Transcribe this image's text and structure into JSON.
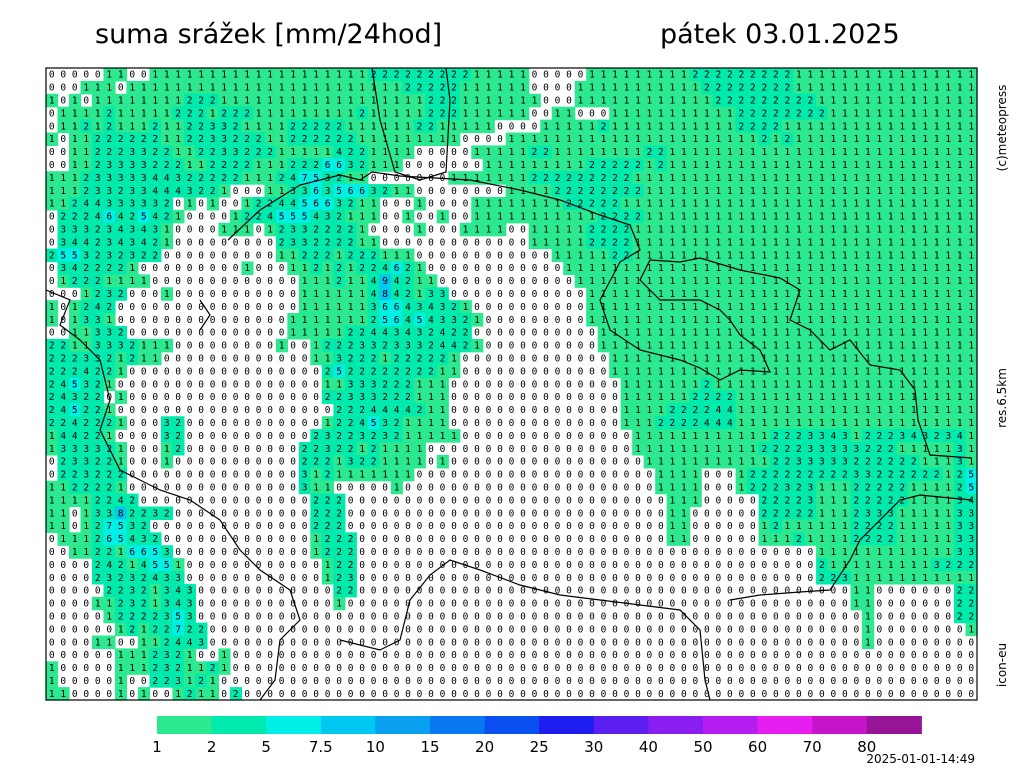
{
  "header": {
    "title": "suma srážek [mm/24hod]",
    "date": "pátek 03.01.2025"
  },
  "side_labels": {
    "copyright": "(c)meteopress",
    "resolution": "res.6.5km",
    "model": "icon-eu"
  },
  "timestamp": "2025-01-01-14:49",
  "colorbar": {
    "labels": [
      1,
      2,
      5,
      7.5,
      10,
      15,
      20,
      25,
      30,
      40,
      50,
      60,
      70,
      80
    ],
    "colors": [
      "#2ce88e",
      "#00eaae",
      "#00f0e8",
      "#00c8f0",
      "#0aa0f0",
      "#0a78f0",
      "#0a50f0",
      "#1e1ef0",
      "#5a1ef0",
      "#8a1ef0",
      "#b41ef0",
      "#e61ef0",
      "#c814c8",
      "#961496"
    ]
  },
  "grid": {
    "rows": [
      "000001100111111111111111111122222222211111000001111111112222222221111111111111111",
      "000111011111111111111111111111122222111111000011111111111222222221111111111111111",
      "101011111111222111111111111111111222111111100011111111111122222222211111111111111",
      "011112111112221222111111111211111222111111001100011111111111222222221111111111111",
      "011212111211223321111222221111112211111000011111211111111111222211111111111111111",
      "101122222211223322211222222111111111000011111111111111111111112121111111111111111",
      "001122233221122332221111142211110000011111221111111122111111111111111111111111111",
      "001123333222112222111222663211100000001111111112222212111111111111111111111111111",
      "111233333443222221112475321100000001111111222222222111111111111111111111111111111",
      "111233233444322100011336356632110000000011112222222211111111111111111111111111111",
      "112443333320101001224456632110001000011111111222221111111111111111111111111111111",
      "022246425421000012245554321110010010011111111111222211111111111111111111111111111",
      "033323434310000111012332222100001000111100111112222111111111111111111111111111111",
      "034423434210000000002332222110000000000000111112222111111111111111111111111111111",
      "255323232200000000001122212221110000000000001111122111111111111111111111111111111",
      "034222210000000001000112121224621000000000000111111111111111111111111111111111111",
      "012221111000000000000011121149421100000000000011111111111111111111111111111111111",
      "000123200010000000000011111148421330000000000001111111111111111111111111111111111",
      "101242000000000000000011111136643432100000000001111111111111111111111111111111111",
      "101331000000000000000111111125645433210000000001111111111111111111111111111111111",
      "001133200000000000000111112244343242200000000000111111111111111111111111111111111",
      "221133321110000000001001222332333244210000000000111111111111111111111111111111111",
      "222332121100000000000001132221222221000000000000011111111111111111111111111111111",
      "222422100000000000000000252222222211000000000000011111111111111111111111111111111",
      "245321000000000000000000113332221110000000000000001111111211111111111111111111111",
      "243220100000000000000000223332221110000000000000001111112222111111111111111111111",
      "245221000000000000000000022244442110000000000000001111222244111111111111111111111",
      "224222100032000000000000122453211110000000000000001112222444111111111111111111111",
      "144221000032000000000002322323211111000000000000000111111111111222334312223432341",
      "133332100012000000000022322121111000000000000000000111111111112222333332221111131",
      "023322100010000000000022213221111010000000000000000011111111111223333322222211131",
      "022322200000000000000031211111110000000000000000000001111000122222222233222222125",
      "112222100000000000000031100000100000000000000000000001111000122232311122222111125",
      "111122420000000000000002220000000000000000000000000000111000002222311122222111134",
      "110133822320000000000002220000000000000000000000000000110000002222211123331111133",
      "110127532000000000000002220000000000000000000000000000110000001211111122221111133",
      "011126543200000000000001222000000000000000000000000000110000001112111122221111133",
      "001122166530000000000001222000000000000000000000000000000000000000011111111111133",
      "000024214551000000000000122000000000000000000000000000000000000000021111111113222",
      "000023232433000000000000123000000000000000000000000000000000000000022311111111111",
      "000002232134300000000000022000000000000000000000000000000000000000000011000000022",
      "000011232134300000000000010000000000000000000000000000000000000000000011000000022",
      "000001222235300000000000000000000000000000000000000000000000000000000001000000022",
      "000000121227220000000000000000000000000000000000000000000000000000000001000000001",
      "000011001124430000000000000000000000000000000000000000000000000000000001000000000",
      "000000111232100100000000000000000000000000000000000000000000000000000000000000000",
      "100000111232112100000000000000000000000000000000000000000000000000000000000000000",
      "100000100223121000000000000000000000000000000000000000000000000000000000000000000",
      "110000101001211020000000000000000000000000000000000000000000000000000000000000000"
    ]
  }
}
